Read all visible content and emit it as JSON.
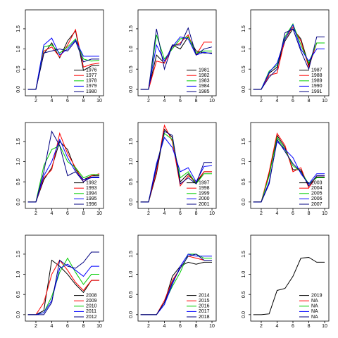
{
  "chart_data": [
    {
      "type": "line",
      "x": [
        1,
        2,
        3,
        4,
        5,
        6,
        7,
        8,
        9,
        10
      ],
      "xlim": [
        0.67,
        10.53
      ],
      "xticks": [
        2,
        4,
        6,
        8,
        10
      ],
      "ylim": [
        -0.16,
        1.97
      ],
      "yticks": [
        {
          "value": 0,
          "label": "0.0"
        },
        {
          "value": 0.5,
          "label": "0.5"
        },
        {
          "value": 1,
          "label": "1.0"
        },
        {
          "value": 1.5,
          "label": "1.5"
        }
      ],
      "legend": "bottomright",
      "series": [
        {
          "name": "1976",
          "color": "#000000",
          "values": [
            0,
            0,
            0.88,
            1.15,
            0.78,
            1.2,
            1.45,
            0.47,
            0.58,
            0.6
          ]
        },
        {
          "name": "1977",
          "color": "#ff0000",
          "values": [
            0,
            0,
            0.95,
            1.05,
            0.8,
            1.1,
            1.48,
            0.55,
            0.62,
            0.65
          ]
        },
        {
          "name": "1978",
          "color": "#00cd00",
          "values": [
            0,
            0,
            1.05,
            1.1,
            0.9,
            1.05,
            1.25,
            0.75,
            0.7,
            0.72
          ]
        },
        {
          "name": "1979",
          "color": "#0000ff",
          "values": [
            0,
            0,
            1.1,
            1.27,
            0.85,
            1.0,
            1.22,
            0.82,
            0.82,
            0.82
          ]
        },
        {
          "name": "1980",
          "color": "#000080",
          "values": [
            0,
            0,
            0.9,
            0.95,
            1.0,
            0.95,
            1.2,
            0.68,
            0.75,
            0.75
          ]
        }
      ]
    },
    {
      "type": "line",
      "x": [
        1,
        2,
        3,
        4,
        5,
        6,
        7,
        8,
        9,
        10
      ],
      "xlim": [
        0.67,
        10.53
      ],
      "xticks": [
        2,
        4,
        6,
        8,
        10
      ],
      "ylim": [
        -0.16,
        1.97
      ],
      "yticks": [
        {
          "value": 0,
          "label": "0.0"
        },
        {
          "value": 0.5,
          "label": "0.5"
        },
        {
          "value": 1,
          "label": "1.0"
        },
        {
          "value": 1.5,
          "label": "1.5"
        }
      ],
      "legend": "bottomright",
      "series": [
        {
          "name": "1981",
          "color": "#000000",
          "values": [
            0,
            0,
            0.85,
            0.65,
            1.1,
            1.0,
            1.3,
            0.95,
            0.9,
            0.9
          ]
        },
        {
          "name": "1982",
          "color": "#ff0000",
          "values": [
            0,
            0,
            0.7,
            0.65,
            1.05,
            1.15,
            1.35,
            0.85,
            1.17,
            1.17
          ]
        },
        {
          "name": "1983",
          "color": "#00cd00",
          "values": [
            0,
            0,
            1.35,
            0.75,
            1.0,
            1.25,
            1.3,
            0.9,
            0.95,
            0.95
          ]
        },
        {
          "name": "1984",
          "color": "#0000ff",
          "values": [
            0,
            0,
            1.1,
            0.7,
            1.05,
            1.3,
            1.25,
            0.85,
            0.92,
            0.88
          ]
        },
        {
          "name": "1985",
          "color": "#000080",
          "values": [
            0,
            0,
            1.5,
            0.5,
            1.1,
            1.1,
            1.52,
            0.85,
            1.0,
            1.05
          ]
        }
      ]
    },
    {
      "type": "line",
      "x": [
        1,
        2,
        3,
        4,
        5,
        6,
        7,
        8,
        9,
        10
      ],
      "xlim": [
        0.67,
        10.53
      ],
      "xticks": [
        2,
        4,
        6,
        8,
        10
      ],
      "ylim": [
        -0.16,
        1.97
      ],
      "yticks": [
        {
          "value": 0,
          "label": "0.0"
        },
        {
          "value": 0.5,
          "label": "0.5"
        },
        {
          "value": 1,
          "label": "1.0"
        },
        {
          "value": 1.5,
          "label": "1.5"
        }
      ],
      "legend": "bottomright",
      "series": [
        {
          "name": "1987",
          "color": "#000000",
          "values": [
            0,
            0,
            0.4,
            0.55,
            1.2,
            1.5,
            1.25,
            0.6,
            1.15,
            1.15
          ]
        },
        {
          "name": "1988",
          "color": "#ff0000",
          "values": [
            0,
            0,
            0.35,
            0.4,
            1.25,
            1.55,
            1.2,
            0.55,
            1.15,
            1.15
          ]
        },
        {
          "name": "1989",
          "color": "#00cd00",
          "values": [
            0,
            0,
            0.45,
            0.6,
            1.3,
            1.62,
            1.1,
            0.65,
            1.15,
            1.15
          ]
        },
        {
          "name": "1990",
          "color": "#0000ff",
          "values": [
            0,
            0,
            0.42,
            0.65,
            1.25,
            1.6,
            1.0,
            0.7,
            1.0,
            1.0
          ]
        },
        {
          "name": "1991",
          "color": "#000080",
          "values": [
            0,
            0,
            0.3,
            0.5,
            1.4,
            1.5,
            0.95,
            0.5,
            1.3,
            1.3
          ]
        }
      ]
    },
    {
      "type": "line",
      "x": [
        1,
        2,
        3,
        4,
        5,
        6,
        7,
        8,
        9,
        10
      ],
      "xlim": [
        0.67,
        10.53
      ],
      "xticks": [
        2,
        4,
        6,
        8,
        10
      ],
      "ylim": [
        -0.16,
        1.97
      ],
      "yticks": [
        {
          "value": 0,
          "label": "0.0"
        },
        {
          "value": 0.5,
          "label": "0.5"
        },
        {
          "value": 1,
          "label": "1.0"
        },
        {
          "value": 1.5,
          "label": "1.5"
        }
      ],
      "legend": "bottomright",
      "series": [
        {
          "name": "1992",
          "color": "#000000",
          "values": [
            0,
            0,
            0.55,
            0.85,
            1.5,
            1.3,
            0.8,
            0.55,
            0.65,
            0.65
          ]
        },
        {
          "name": "1993",
          "color": "#ff0000",
          "values": [
            0,
            0,
            0.6,
            0.8,
            1.7,
            1.2,
            0.85,
            0.5,
            0.65,
            0.7
          ]
        },
        {
          "name": "1994",
          "color": "#00cd00",
          "values": [
            0,
            0,
            0.9,
            1.3,
            1.4,
            1.0,
            0.85,
            0.6,
            0.68,
            0.68
          ]
        },
        {
          "name": "1995",
          "color": "#0000ff",
          "values": [
            0,
            0,
            0.65,
            1.0,
            1.55,
            1.1,
            0.75,
            0.55,
            0.6,
            0.6
          ]
        },
        {
          "name": "1996",
          "color": "#000080",
          "values": [
            0,
            0,
            0.75,
            1.75,
            1.4,
            0.65,
            0.75,
            0.5,
            0.62,
            0.62
          ]
        }
      ]
    },
    {
      "type": "line",
      "x": [
        1,
        2,
        3,
        4,
        5,
        6,
        7,
        8,
        9,
        10
      ],
      "xlim": [
        0.67,
        10.53
      ],
      "xticks": [
        2,
        4,
        6,
        8,
        10
      ],
      "ylim": [
        -0.16,
        1.97
      ],
      "yticks": [
        {
          "value": 0,
          "label": "0.0"
        },
        {
          "value": 0.5,
          "label": "0.5"
        },
        {
          "value": 1,
          "label": "1.0"
        },
        {
          "value": 1.5,
          "label": "1.5"
        }
      ],
      "legend": "bottomright",
      "series": [
        {
          "name": "1997",
          "color": "#000000",
          "values": [
            0,
            0,
            0.7,
            1.8,
            1.6,
            0.5,
            0.7,
            0.45,
            0.75,
            0.75
          ]
        },
        {
          "name": "1998",
          "color": "#ff0000",
          "values": [
            0,
            0,
            0.75,
            1.9,
            1.5,
            0.4,
            0.65,
            0.5,
            0.75,
            0.75
          ]
        },
        {
          "name": "1999",
          "color": "#00cd00",
          "values": [
            0,
            0,
            0.9,
            1.7,
            1.55,
            0.6,
            0.75,
            0.45,
            0.7,
            0.7
          ]
        },
        {
          "name": "2000",
          "color": "#0000ff",
          "values": [
            0,
            0,
            0.95,
            1.6,
            1.35,
            0.75,
            0.85,
            0.5,
            0.88,
            0.9
          ]
        },
        {
          "name": "2001",
          "color": "#000080",
          "values": [
            0,
            0,
            0.85,
            1.75,
            1.65,
            0.45,
            0.6,
            0.45,
            0.98,
            0.98
          ]
        }
      ]
    },
    {
      "type": "line",
      "x": [
        1,
        2,
        3,
        4,
        5,
        6,
        7,
        8,
        9,
        10
      ],
      "xlim": [
        0.67,
        10.53
      ],
      "xticks": [
        2,
        4,
        6,
        8,
        10
      ],
      "ylim": [
        -0.16,
        1.97
      ],
      "yticks": [
        {
          "value": 0,
          "label": "0.0"
        },
        {
          "value": 0.5,
          "label": "0.5"
        },
        {
          "value": 1,
          "label": "1.0"
        },
        {
          "value": 1.5,
          "label": "1.5"
        }
      ],
      "legend": "bottomright",
      "series": [
        {
          "name": "2003",
          "color": "#000000",
          "values": [
            0,
            0,
            0.7,
            1.65,
            1.35,
            0.8,
            0.8,
            0.4,
            0.62,
            0.62
          ]
        },
        {
          "name": "2004",
          "color": "#ff0000",
          "values": [
            0,
            0,
            0.75,
            1.7,
            1.4,
            0.75,
            0.85,
            0.35,
            0.65,
            0.65
          ]
        },
        {
          "name": "2005",
          "color": "#00cd00",
          "values": [
            0,
            0,
            0.65,
            1.6,
            1.3,
            0.9,
            0.75,
            0.45,
            0.6,
            0.6
          ]
        },
        {
          "name": "2006",
          "color": "#0000ff",
          "values": [
            0,
            0,
            0.5,
            1.5,
            1.3,
            1.1,
            0.7,
            0.45,
            0.7,
            0.7
          ]
        },
        {
          "name": "2007",
          "color": "#000080",
          "values": [
            0,
            0,
            0.45,
            1.55,
            1.25,
            0.95,
            0.75,
            0.4,
            0.65,
            0.65
          ]
        }
      ]
    },
    {
      "type": "line",
      "x": [
        1,
        2,
        3,
        4,
        5,
        6,
        7,
        8,
        9,
        10
      ],
      "xlim": [
        0.67,
        10.53
      ],
      "xticks": [
        2,
        4,
        6,
        8,
        10
      ],
      "ylim": [
        -0.16,
        1.97
      ],
      "yticks": [
        {
          "value": 0,
          "label": "0.0"
        },
        {
          "value": 0.5,
          "label": "0.5"
        },
        {
          "value": 1,
          "label": "1.0"
        },
        {
          "value": 1.5,
          "label": "1.5"
        }
      ],
      "legend": "bottomright",
      "series": [
        {
          "name": "2008",
          "color": "#000000",
          "values": [
            0,
            0,
            0.1,
            1.35,
            1.2,
            1.0,
            0.75,
            0.55,
            0.85,
            0.85
          ]
        },
        {
          "name": "2009",
          "color": "#ff0000",
          "values": [
            0,
            0,
            0.3,
            1.0,
            1.35,
            1.1,
            0.8,
            0.6,
            0.85,
            0.85
          ]
        },
        {
          "name": "2010",
          "color": "#00cd00",
          "values": [
            0,
            0,
            0.05,
            0.45,
            1.05,
            1.4,
            1.05,
            0.75,
            1.0,
            1.0
          ]
        },
        {
          "name": "2011",
          "color": "#0000ff",
          "values": [
            0,
            0,
            0.05,
            0.35,
            1.15,
            1.25,
            1.1,
            0.95,
            1.2,
            1.2
          ]
        },
        {
          "name": "2012",
          "color": "#000080",
          "values": [
            0,
            0,
            0,
            0.3,
            1.35,
            1.2,
            1.15,
            1.3,
            1.55,
            1.55
          ]
        }
      ]
    },
    {
      "type": "line",
      "x": [
        1,
        2,
        3,
        4,
        5,
        6,
        7,
        8,
        9,
        10
      ],
      "xlim": [
        0.67,
        10.53
      ],
      "xticks": [
        2,
        4,
        6,
        8,
        10
      ],
      "ylim": [
        -0.16,
        1.97
      ],
      "yticks": [
        {
          "value": 0,
          "label": "0.0"
        },
        {
          "value": 0.5,
          "label": "0.5"
        },
        {
          "value": 1,
          "label": "1.0"
        },
        {
          "value": 1.5,
          "label": "1.5"
        }
      ],
      "legend": "bottomright",
      "series": [
        {
          "name": "2014",
          "color": "#000000",
          "values": [
            0,
            0,
            0,
            0.3,
            0.95,
            1.2,
            1.3,
            1.25,
            1.3,
            1.3
          ]
        },
        {
          "name": "2015",
          "color": "#ff0000",
          "values": [
            0,
            0,
            0,
            0.35,
            0.85,
            1.15,
            1.45,
            1.4,
            1.35,
            1.35
          ]
        },
        {
          "name": "2016",
          "color": "#00cd00",
          "values": [
            0,
            0,
            0,
            0.3,
            0.7,
            1.05,
            1.5,
            1.5,
            1.4,
            1.4
          ]
        },
        {
          "name": "2017",
          "color": "#0000ff",
          "values": [
            0,
            0,
            0,
            0.25,
            0.75,
            1.2,
            1.5,
            1.45,
            1.45,
            1.45
          ]
        },
        {
          "name": "2018",
          "color": "#000080",
          "values": [
            0,
            0,
            0,
            0.3,
            0.8,
            1.15,
            1.45,
            1.5,
            1.35,
            1.35
          ]
        }
      ]
    },
    {
      "type": "line",
      "x": [
        1,
        2,
        3,
        4,
        5,
        6,
        7,
        8,
        9,
        10
      ],
      "xlim": [
        0.67,
        10.53
      ],
      "xticks": [
        2,
        4,
        6,
        8,
        10
      ],
      "ylim": [
        -0.16,
        1.97
      ],
      "yticks": [
        {
          "value": 0,
          "label": "0.0"
        },
        {
          "value": 0.5,
          "label": "0.5"
        },
        {
          "value": 1,
          "label": "1.0"
        },
        {
          "value": 1.5,
          "label": "1.5"
        }
      ],
      "legend": "bottomright",
      "series": [
        {
          "name": "2019",
          "color": "#000000",
          "values": [
            0,
            0,
            0.02,
            0.6,
            0.65,
            0.95,
            1.4,
            1.42,
            1.3,
            1.3
          ]
        },
        {
          "name": "NA",
          "color": "#ff0000",
          "values": [
            null,
            null,
            null,
            null,
            null,
            null,
            null,
            null,
            null,
            null
          ]
        },
        {
          "name": "NA",
          "color": "#00cd00",
          "values": [
            null,
            null,
            null,
            null,
            null,
            null,
            null,
            null,
            null,
            null
          ]
        },
        {
          "name": "NA",
          "color": "#0000ff",
          "values": [
            null,
            null,
            null,
            null,
            null,
            null,
            null,
            null,
            null,
            null
          ]
        },
        {
          "name": "NA",
          "color": "#000080",
          "values": [
            null,
            null,
            null,
            null,
            null,
            null,
            null,
            null,
            null,
            null
          ]
        }
      ]
    }
  ]
}
